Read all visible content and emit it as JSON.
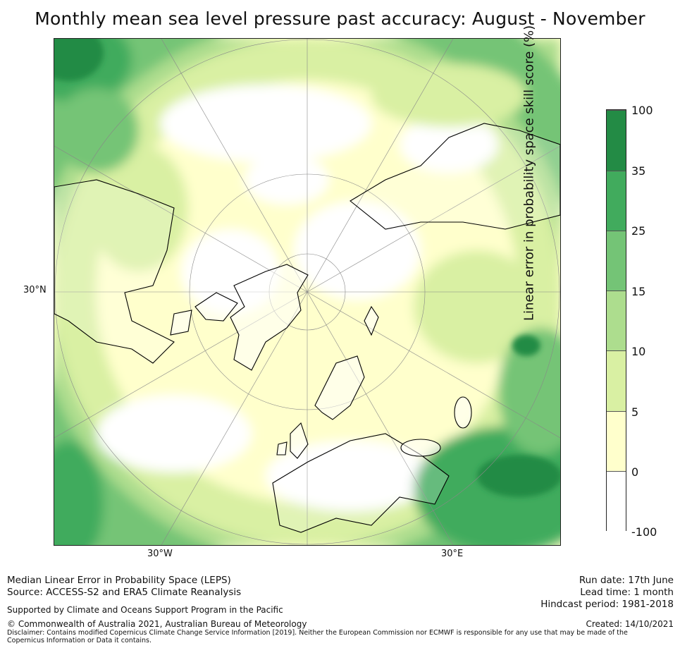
{
  "title": "Monthly mean sea level pressure past accuracy: August - November",
  "map": {
    "projection": "north-polar-stereographic",
    "latitude_label": "30°N",
    "longitude_labels": {
      "west": "30°W",
      "east": "30°E"
    },
    "graticule": true
  },
  "colorbar": {
    "title": "Linear error in probability space skill score (%)",
    "ticks": [
      "100",
      "35",
      "25",
      "15",
      "10",
      "5",
      "0",
      "-100"
    ],
    "bins": [
      {
        "range": "35 to 100",
        "color": "#238b45"
      },
      {
        "range": "25 to 35",
        "color": "#41ab5d"
      },
      {
        "range": "15 to 25",
        "color": "#74c476"
      },
      {
        "range": "10 to 15",
        "color": "#addd8e"
      },
      {
        "range": "5 to 10",
        "color": "#d9f0a3"
      },
      {
        "range": "0 to 5",
        "color": "#ffffcc"
      },
      {
        "range": "-100 to 0",
        "color": "#ffffff"
      }
    ]
  },
  "footer": {
    "line1": "Median Linear Error in Probability Space (LEPS)",
    "line2": "Source: ACCESS-S2 and ERA5 Climate Reanalysis",
    "supported": "Supported by Climate and Oceans Support Program in the Pacific",
    "copyright": "© Commonwealth of Australia 2021, Australian Bureau of Meteorology",
    "disclaimer": "Disclaimer: Contains modified Copernicus Climate Change Service Information [2019]. Neither the European Commission nor ECMWF is responsible for any use that may be made of the Copernicus Information or Data it contains.",
    "run_date": "Run date: 17th June",
    "lead_time": "Lead time: 1 month",
    "hindcast": "Hindcast period: 1981-2018",
    "created": "Created: 14/10/2021"
  }
}
